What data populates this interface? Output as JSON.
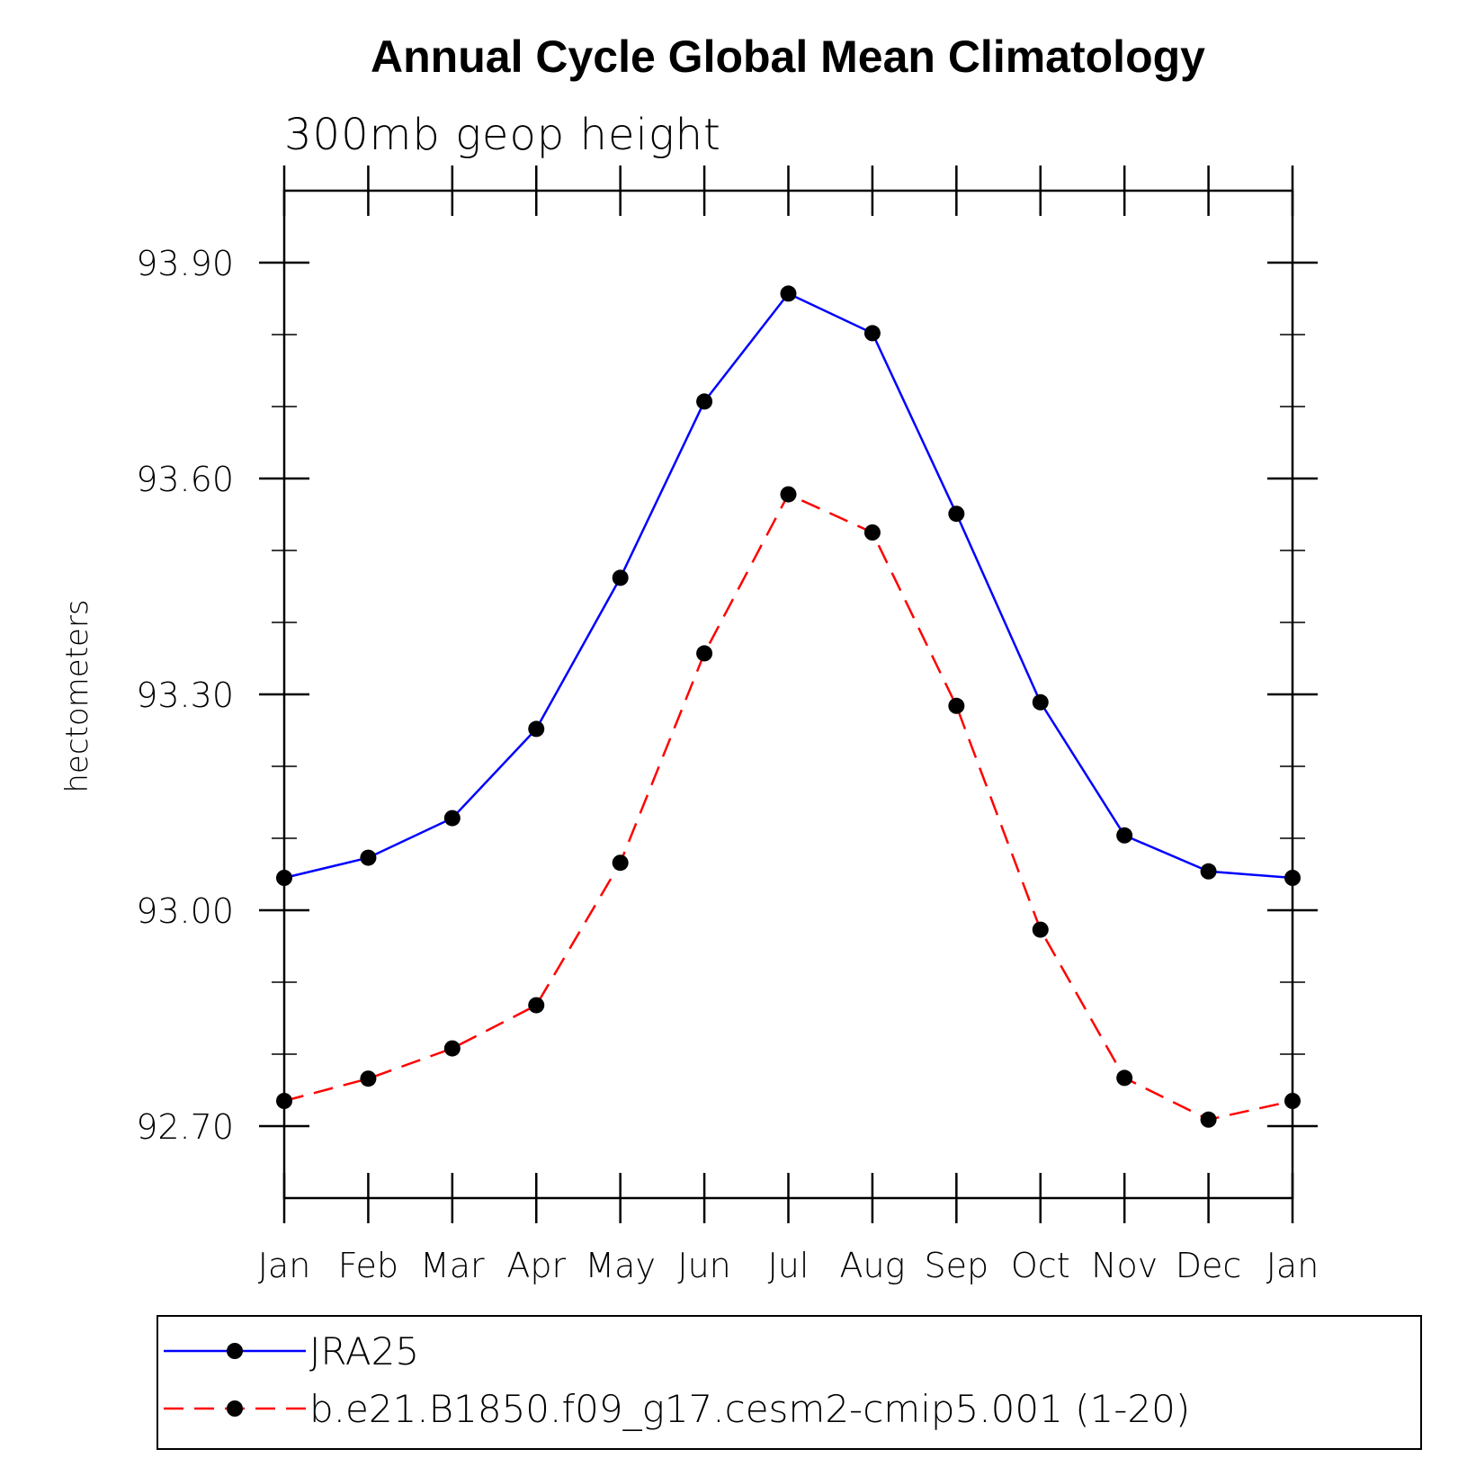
{
  "chart_data": {
    "type": "line",
    "title": "Annual Cycle Global Mean Climatology",
    "subtitle": "300mb  geop  height",
    "ylabel": "hectometers",
    "xlabel": "",
    "categories": [
      "Jan",
      "Feb",
      "Mar",
      "Apr",
      "May",
      "Jun",
      "Jul",
      "Aug",
      "Sep",
      "Oct",
      "Nov",
      "Dec",
      "Jan"
    ],
    "ylim": [
      92.6,
      94.0
    ],
    "yticks": [
      92.7,
      93.0,
      93.3,
      93.6,
      93.9
    ],
    "ytick_labels": [
      "92.70",
      "93.00",
      "93.30",
      "93.60",
      "93.90"
    ],
    "grid": false,
    "legend_position": "bottom",
    "series": [
      {
        "name": "JRA25",
        "color": "#0000ff",
        "dash": "solid",
        "marker": "filled-circle",
        "values": [
          93.045,
          93.073,
          93.128,
          93.252,
          93.462,
          93.707,
          93.857,
          93.802,
          93.551,
          93.289,
          93.104,
          93.054,
          93.045
        ]
      },
      {
        "name": "b.e21.B1850.f09_g17.cesm2-cmip5.001 (1-20)",
        "color": "#ff0000",
        "dash": "dashed",
        "marker": "filled-circle",
        "values": [
          92.735,
          92.766,
          92.808,
          92.868,
          93.066,
          93.357,
          93.578,
          93.525,
          93.284,
          92.973,
          92.767,
          92.709,
          92.735
        ]
      }
    ]
  }
}
